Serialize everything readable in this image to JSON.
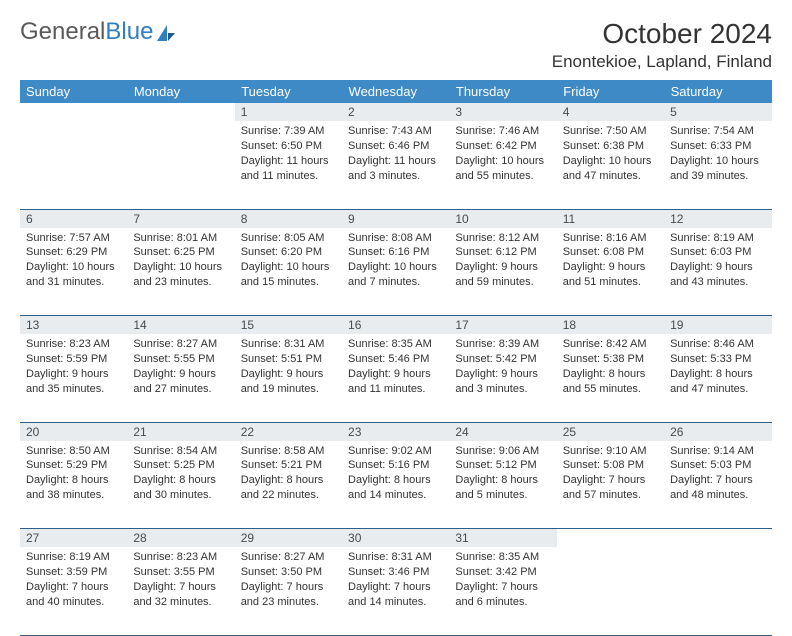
{
  "logo": {
    "text1": "General",
    "text2": "Blue"
  },
  "title": "October 2024",
  "location": "Enontekioe, Lapland, Finland",
  "colors": {
    "header_bg": "#3d8ac7",
    "header_text": "#ffffff",
    "daynum_bg": "#e8ecef",
    "row_border": "#2e5f8a",
    "logo_gray": "#5a5a5a",
    "logo_blue": "#2f7fc1"
  },
  "weekdays": [
    "Sunday",
    "Monday",
    "Tuesday",
    "Wednesday",
    "Thursday",
    "Friday",
    "Saturday"
  ],
  "weeks": [
    [
      null,
      null,
      {
        "n": "1",
        "sr": "Sunrise: 7:39 AM",
        "ss": "Sunset: 6:50 PM",
        "dl": "Daylight: 11 hours and 11 minutes."
      },
      {
        "n": "2",
        "sr": "Sunrise: 7:43 AM",
        "ss": "Sunset: 6:46 PM",
        "dl": "Daylight: 11 hours and 3 minutes."
      },
      {
        "n": "3",
        "sr": "Sunrise: 7:46 AM",
        "ss": "Sunset: 6:42 PM",
        "dl": "Daylight: 10 hours and 55 minutes."
      },
      {
        "n": "4",
        "sr": "Sunrise: 7:50 AM",
        "ss": "Sunset: 6:38 PM",
        "dl": "Daylight: 10 hours and 47 minutes."
      },
      {
        "n": "5",
        "sr": "Sunrise: 7:54 AM",
        "ss": "Sunset: 6:33 PM",
        "dl": "Daylight: 10 hours and 39 minutes."
      }
    ],
    [
      {
        "n": "6",
        "sr": "Sunrise: 7:57 AM",
        "ss": "Sunset: 6:29 PM",
        "dl": "Daylight: 10 hours and 31 minutes."
      },
      {
        "n": "7",
        "sr": "Sunrise: 8:01 AM",
        "ss": "Sunset: 6:25 PM",
        "dl": "Daylight: 10 hours and 23 minutes."
      },
      {
        "n": "8",
        "sr": "Sunrise: 8:05 AM",
        "ss": "Sunset: 6:20 PM",
        "dl": "Daylight: 10 hours and 15 minutes."
      },
      {
        "n": "9",
        "sr": "Sunrise: 8:08 AM",
        "ss": "Sunset: 6:16 PM",
        "dl": "Daylight: 10 hours and 7 minutes."
      },
      {
        "n": "10",
        "sr": "Sunrise: 8:12 AM",
        "ss": "Sunset: 6:12 PM",
        "dl": "Daylight: 9 hours and 59 minutes."
      },
      {
        "n": "11",
        "sr": "Sunrise: 8:16 AM",
        "ss": "Sunset: 6:08 PM",
        "dl": "Daylight: 9 hours and 51 minutes."
      },
      {
        "n": "12",
        "sr": "Sunrise: 8:19 AM",
        "ss": "Sunset: 6:03 PM",
        "dl": "Daylight: 9 hours and 43 minutes."
      }
    ],
    [
      {
        "n": "13",
        "sr": "Sunrise: 8:23 AM",
        "ss": "Sunset: 5:59 PM",
        "dl": "Daylight: 9 hours and 35 minutes."
      },
      {
        "n": "14",
        "sr": "Sunrise: 8:27 AM",
        "ss": "Sunset: 5:55 PM",
        "dl": "Daylight: 9 hours and 27 minutes."
      },
      {
        "n": "15",
        "sr": "Sunrise: 8:31 AM",
        "ss": "Sunset: 5:51 PM",
        "dl": "Daylight: 9 hours and 19 minutes."
      },
      {
        "n": "16",
        "sr": "Sunrise: 8:35 AM",
        "ss": "Sunset: 5:46 PM",
        "dl": "Daylight: 9 hours and 11 minutes."
      },
      {
        "n": "17",
        "sr": "Sunrise: 8:39 AM",
        "ss": "Sunset: 5:42 PM",
        "dl": "Daylight: 9 hours and 3 minutes."
      },
      {
        "n": "18",
        "sr": "Sunrise: 8:42 AM",
        "ss": "Sunset: 5:38 PM",
        "dl": "Daylight: 8 hours and 55 minutes."
      },
      {
        "n": "19",
        "sr": "Sunrise: 8:46 AM",
        "ss": "Sunset: 5:33 PM",
        "dl": "Daylight: 8 hours and 47 minutes."
      }
    ],
    [
      {
        "n": "20",
        "sr": "Sunrise: 8:50 AM",
        "ss": "Sunset: 5:29 PM",
        "dl": "Daylight: 8 hours and 38 minutes."
      },
      {
        "n": "21",
        "sr": "Sunrise: 8:54 AM",
        "ss": "Sunset: 5:25 PM",
        "dl": "Daylight: 8 hours and 30 minutes."
      },
      {
        "n": "22",
        "sr": "Sunrise: 8:58 AM",
        "ss": "Sunset: 5:21 PM",
        "dl": "Daylight: 8 hours and 22 minutes."
      },
      {
        "n": "23",
        "sr": "Sunrise: 9:02 AM",
        "ss": "Sunset: 5:16 PM",
        "dl": "Daylight: 8 hours and 14 minutes."
      },
      {
        "n": "24",
        "sr": "Sunrise: 9:06 AM",
        "ss": "Sunset: 5:12 PM",
        "dl": "Daylight: 8 hours and 5 minutes."
      },
      {
        "n": "25",
        "sr": "Sunrise: 9:10 AM",
        "ss": "Sunset: 5:08 PM",
        "dl": "Daylight: 7 hours and 57 minutes."
      },
      {
        "n": "26",
        "sr": "Sunrise: 9:14 AM",
        "ss": "Sunset: 5:03 PM",
        "dl": "Daylight: 7 hours and 48 minutes."
      }
    ],
    [
      {
        "n": "27",
        "sr": "Sunrise: 8:19 AM",
        "ss": "Sunset: 3:59 PM",
        "dl": "Daylight: 7 hours and 40 minutes."
      },
      {
        "n": "28",
        "sr": "Sunrise: 8:23 AM",
        "ss": "Sunset: 3:55 PM",
        "dl": "Daylight: 7 hours and 32 minutes."
      },
      {
        "n": "29",
        "sr": "Sunrise: 8:27 AM",
        "ss": "Sunset: 3:50 PM",
        "dl": "Daylight: 7 hours and 23 minutes."
      },
      {
        "n": "30",
        "sr": "Sunrise: 8:31 AM",
        "ss": "Sunset: 3:46 PM",
        "dl": "Daylight: 7 hours and 14 minutes."
      },
      {
        "n": "31",
        "sr": "Sunrise: 8:35 AM",
        "ss": "Sunset: 3:42 PM",
        "dl": "Daylight: 7 hours and 6 minutes."
      },
      null,
      null
    ]
  ]
}
